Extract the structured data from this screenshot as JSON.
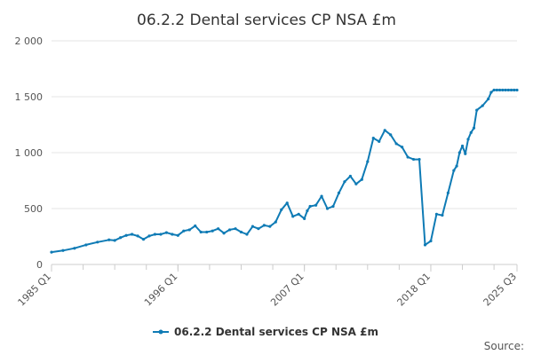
{
  "chart_data": {
    "type": "line",
    "title": "06.2.2 Dental services CP NSA £m",
    "xlabel": "",
    "ylabel": "",
    "ylim": [
      0,
      2000
    ],
    "yticks": [
      0,
      500,
      1000,
      1500,
      2000
    ],
    "ytick_labels": [
      "0",
      "500",
      "1 000",
      "1 500",
      "2 000"
    ],
    "x_range": [
      1985.0,
      2025.5
    ],
    "xticks": [
      1985.0,
      1996.0,
      2007.0,
      2018.0,
      2025.5
    ],
    "xtick_labels": [
      "1985 Q1",
      "1996 Q1",
      "2007 Q1",
      "2018 Q1",
      "2025 Q3"
    ],
    "legend": "bottom-center",
    "grid": "horizontal",
    "source_label": "Source:",
    "series": [
      {
        "name": "06.2.2 Dental services CP NSA £m",
        "color": "#0f7bb5",
        "x": [
          1985.0,
          1986.0,
          1987.0,
          1988.0,
          1989.0,
          1990.0,
          1990.5,
          1991.0,
          1991.5,
          1992.0,
          1992.5,
          1993.0,
          1993.5,
          1994.0,
          1994.5,
          1995.0,
          1995.5,
          1996.0,
          1996.5,
          1997.0,
          1997.5,
          1998.0,
          1998.5,
          1999.0,
          1999.5,
          2000.0,
          2000.5,
          2001.0,
          2001.5,
          2002.0,
          2002.5,
          2003.0,
          2003.5,
          2004.0,
          2004.5,
          2005.0,
          2005.5,
          2006.0,
          2006.5,
          2007.0,
          2007.25,
          2007.5,
          2008.0,
          2008.5,
          2009.0,
          2009.5,
          2010.0,
          2010.5,
          2011.0,
          2011.5,
          2012.0,
          2012.5,
          2013.0,
          2013.5,
          2014.0,
          2014.5,
          2015.0,
          2015.5,
          2016.0,
          2016.5,
          2017.0,
          2017.5,
          2018.0,
          2018.5,
          2019.0,
          2019.5,
          2020.0,
          2020.25,
          2020.5,
          2020.75,
          2021.0,
          2021.25,
          2021.5,
          2021.75,
          2022.0,
          2022.5,
          2023.0,
          2023.25,
          2023.5,
          2023.75,
          2024.0,
          2024.25,
          2024.5,
          2024.75,
          2025.0,
          2025.25,
          2025.5
        ],
        "values": [
          110,
          125,
          145,
          175,
          200,
          220,
          215,
          240,
          260,
          270,
          255,
          225,
          255,
          270,
          270,
          285,
          270,
          260,
          300,
          310,
          345,
          290,
          290,
          300,
          320,
          280,
          310,
          320,
          290,
          270,
          340,
          320,
          350,
          340,
          380,
          490,
          550,
          430,
          450,
          410,
          480,
          520,
          530,
          610,
          500,
          520,
          640,
          740,
          790,
          720,
          760,
          920,
          1130,
          1100,
          1200,
          1160,
          1080,
          1050,
          960,
          940,
          940,
          175,
          210,
          450,
          440,
          640,
          840,
          880,
          1000,
          1060,
          990,
          1120,
          1180,
          1220,
          1380,
          1420,
          1480,
          1540,
          1560,
          1560,
          1560,
          1560,
          1560,
          1560,
          1560,
          1560,
          1560
        ]
      }
    ]
  }
}
